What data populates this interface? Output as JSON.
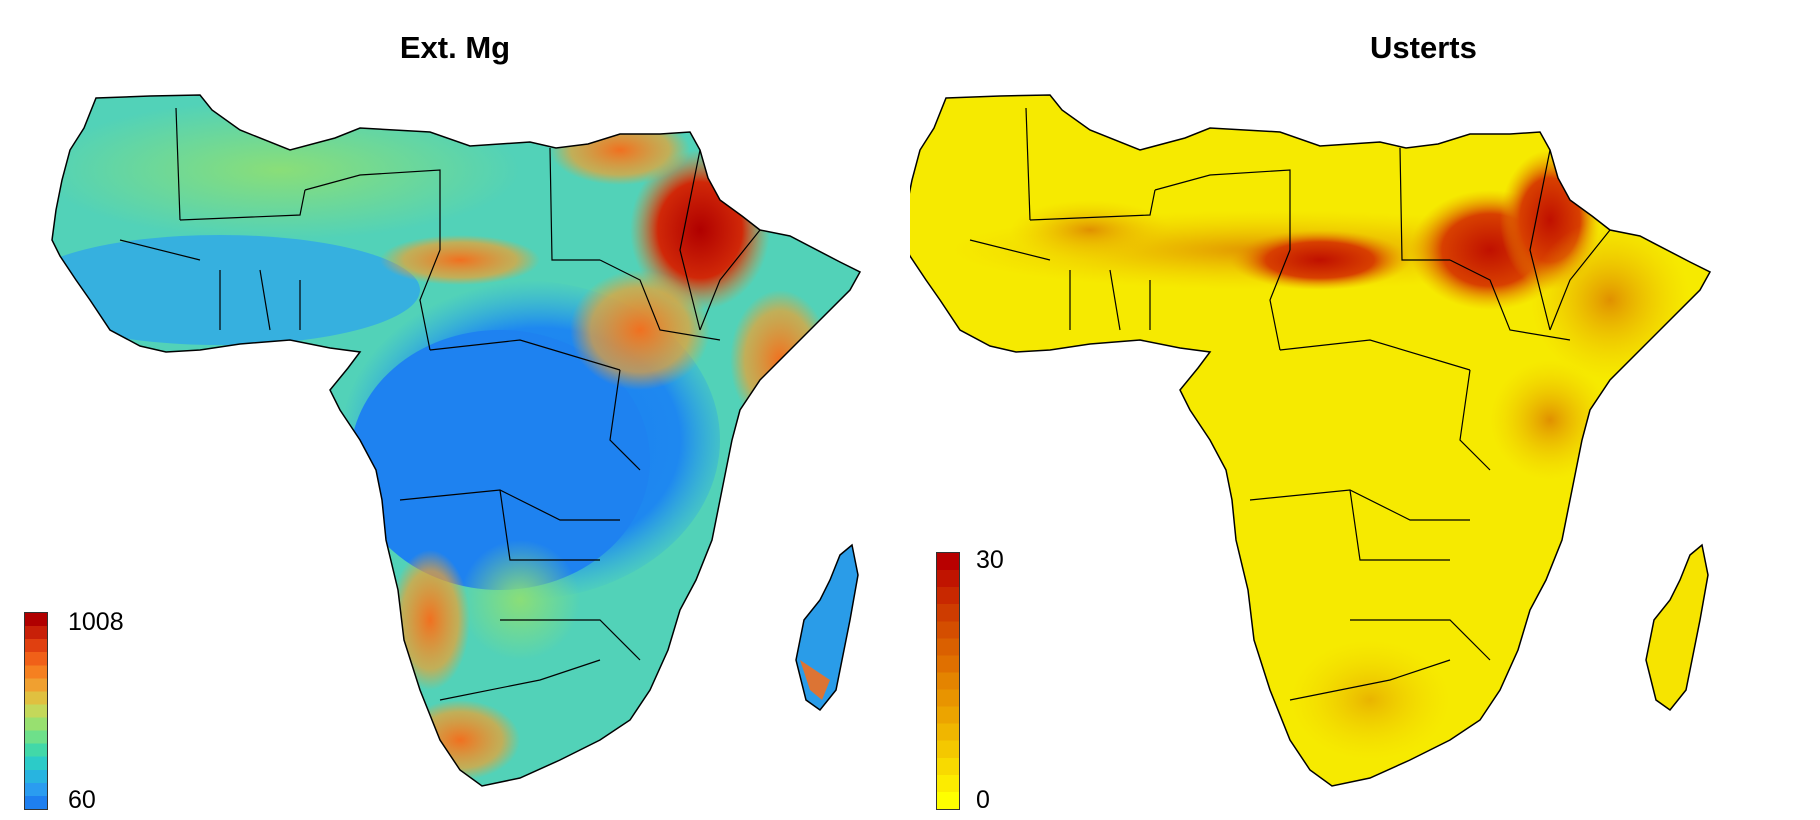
{
  "maps": [
    {
      "title": "Ext. Mg",
      "legend": {
        "max_label": "1008",
        "min_label": "60",
        "colors": [
          "#1e7ff0",
          "#2a9cf0",
          "#28b4e0",
          "#2ccbc8",
          "#42d8a8",
          "#6ee08a",
          "#98e070",
          "#c4d85a",
          "#e0c040",
          "#f0a030",
          "#f58020",
          "#f06018",
          "#e04010",
          "#c82008",
          "#b00000"
        ]
      },
      "palette": {
        "low": "#1e88f0",
        "mid_low": "#40c8d0",
        "mid": "#7ede7a",
        "mid_high": "#f0a030",
        "high": "#b80000"
      }
    },
    {
      "title": "Usterts",
      "legend": {
        "max_label": "30",
        "min_label": "0",
        "colors": [
          "#ffff00",
          "#fcec00",
          "#f8da00",
          "#f4c800",
          "#f0b600",
          "#eca400",
          "#e89400",
          "#e48400",
          "#e07000",
          "#da6000",
          "#d44e00",
          "#ce3c00",
          "#c82800",
          "#c01400",
          "#b80000"
        ]
      },
      "palette": {
        "low": "#ffff00",
        "mid": "#e8b000",
        "high": "#c01000"
      }
    }
  ]
}
